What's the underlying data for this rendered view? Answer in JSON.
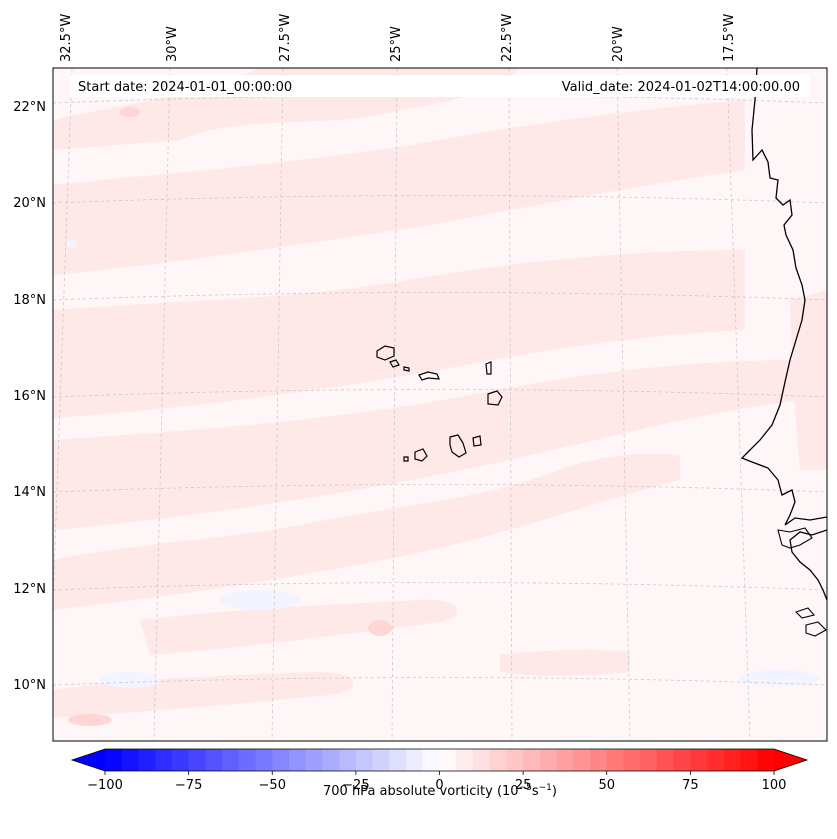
{
  "header": {
    "start_date": "Start date: 2024-01-01_00:00:00",
    "valid_date": "Valid_date: 2024-01-02T14:00:00.00"
  },
  "map": {
    "longitude_labels": [
      "32.5°W",
      "30°W",
      "27.5°W",
      "25°W",
      "22.5°W",
      "20°W",
      "17.5°W"
    ],
    "latitude_labels": [
      "22°N",
      "20°N",
      "18°N",
      "16°N",
      "14°N",
      "12°N",
      "10°N"
    ],
    "field": "700 hPa absolute vorticity",
    "colors": {
      "gridline": "#c8c8c8",
      "coast": "#000000",
      "background": "#fff7f7",
      "weak_positive": "#ffe6e6",
      "moderate_positive": "#ffd0d0",
      "weak_negative": "#f3f5ff"
    }
  },
  "colorbar": {
    "label": "700 hPa absolute vorticity (10",
    "label_exp1": "−5",
    "label_mid": "s",
    "label_exp2": "−1",
    "label_end": ")",
    "tick_labels": [
      "−100",
      "−75",
      "−50",
      "−25",
      "0",
      "25",
      "50",
      "75",
      "100"
    ],
    "min": -100,
    "max": 100,
    "step": 5,
    "extend": "both",
    "colors": {
      "negative_end": "#0000ff",
      "positive_end": "#ff0000",
      "center": "#ffffff"
    }
  }
}
